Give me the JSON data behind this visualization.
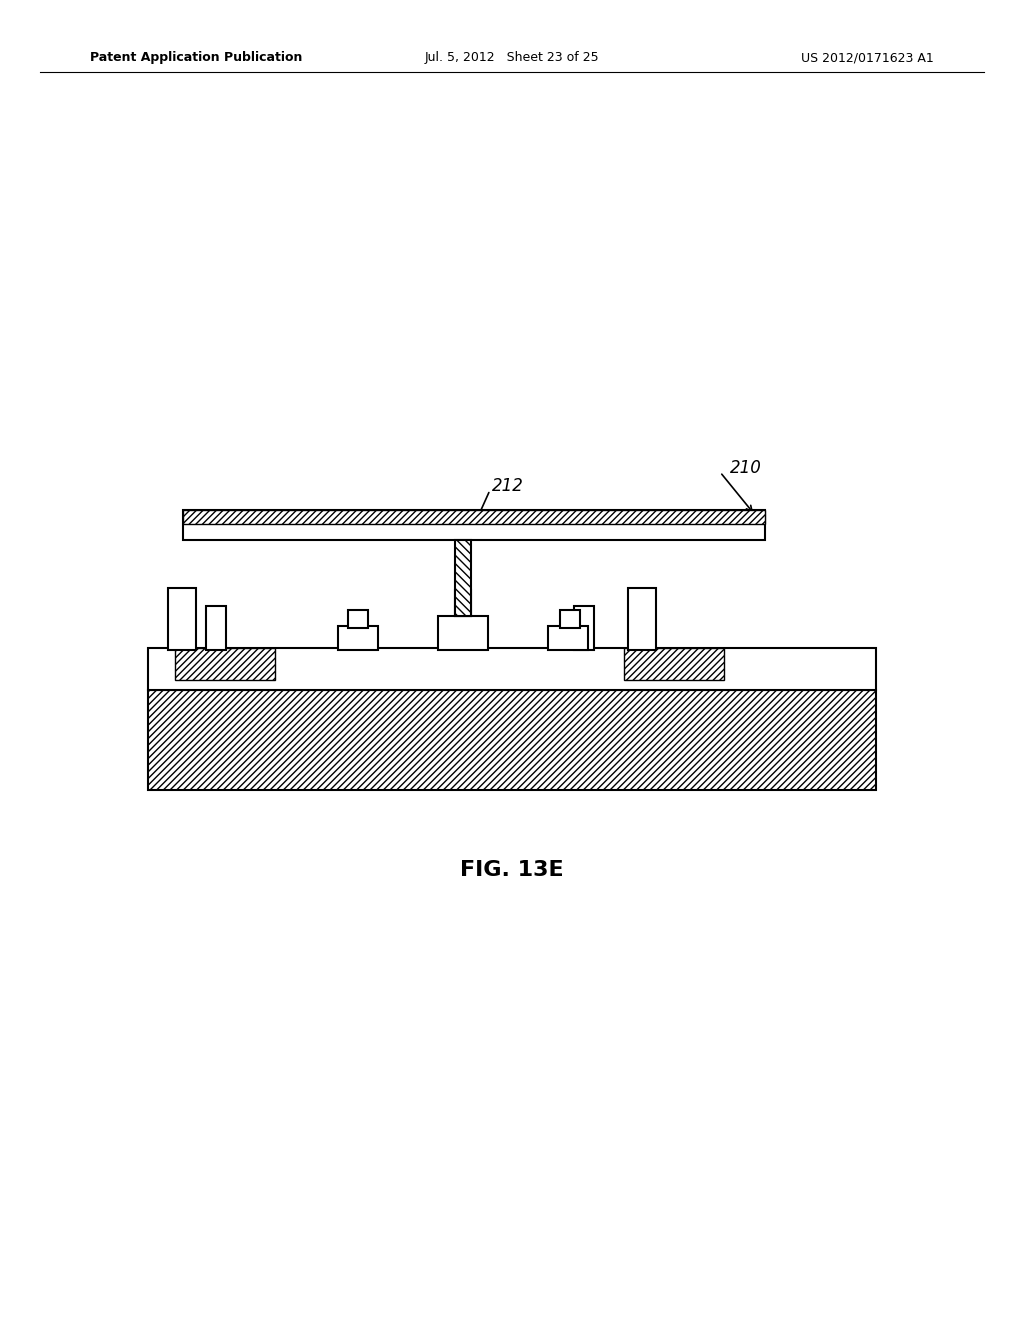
{
  "title": "FIG. 13E",
  "header_left": "Patent Application Publication",
  "header_mid": "Jul. 5, 2012   Sheet 23 of 25",
  "header_right": "US 2012/0171623 A1",
  "bg_color": "#ffffff",
  "line_color": "#000000",
  "hatch_color": "#000000",
  "label_210": "210",
  "label_212": "212",
  "fig_label": "FIG. 13E"
}
